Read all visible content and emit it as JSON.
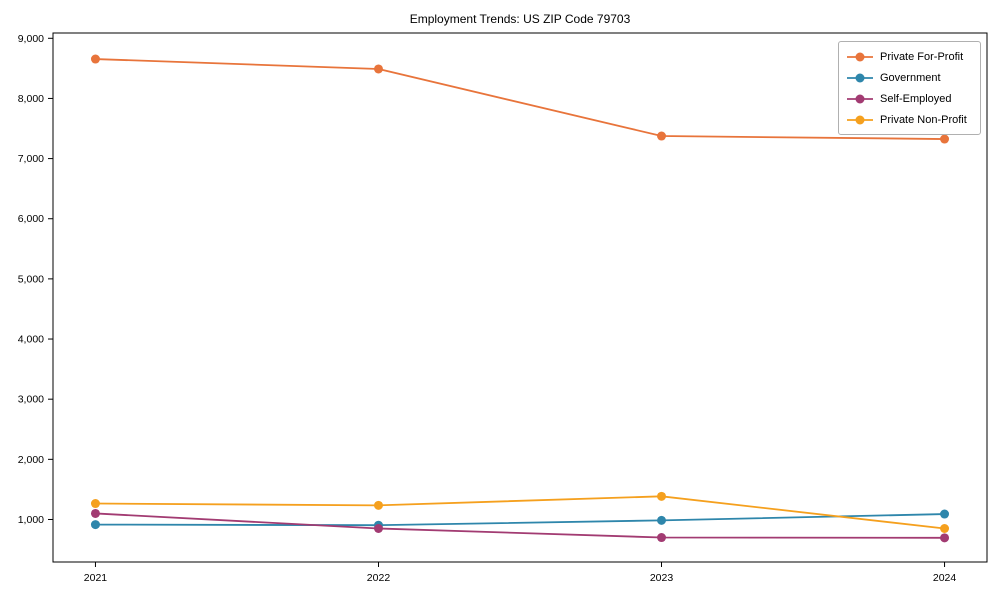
{
  "page": {
    "background": "#ffffff"
  },
  "chart_data": {
    "type": "line",
    "title": "Employment Trends: US ZIP Code 79703",
    "xlabel": "",
    "ylabel": "",
    "x": [
      2021,
      2022,
      2023,
      2024
    ],
    "x_tick_labels": [
      "2021",
      "2022",
      "2023",
      "2024"
    ],
    "series": [
      {
        "name": "Private For-Profit",
        "color": "#E8743B",
        "values": [
          8655,
          8490,
          7375,
          7325
        ]
      },
      {
        "name": "Government",
        "color": "#2E86AB",
        "values": [
          915,
          905,
          985,
          1090
        ]
      },
      {
        "name": "Self-Employed",
        "color": "#A23B72",
        "values": [
          1100,
          850,
          700,
          695
        ]
      },
      {
        "name": "Private Non-Profit",
        "color": "#F5A01E",
        "values": [
          1265,
          1235,
          1385,
          850
        ]
      }
    ],
    "y_ticks": [
      1000,
      2000,
      3000,
      4000,
      5000,
      6000,
      7000,
      8000,
      9000
    ],
    "y_tick_labels": [
      "1,000",
      "2,000",
      "3,000",
      "4,000",
      "5,000",
      "6,000",
      "7,000",
      "8,000",
      "9,000"
    ],
    "xlim": [
      2020.85,
      2024.15
    ],
    "ylim": [
      293,
      9088
    ],
    "grid": false,
    "legend": {
      "position": "upper right",
      "labels": [
        "Private For-Profit",
        "Government",
        "Self-Employed",
        "Private Non-Profit"
      ]
    },
    "axis_color": "#000000",
    "text_color": "#000000"
  }
}
